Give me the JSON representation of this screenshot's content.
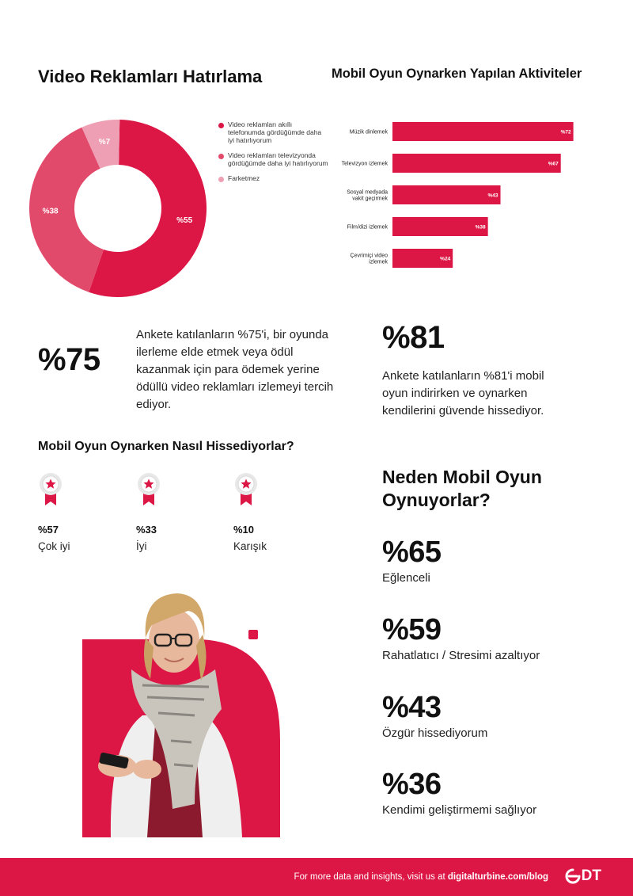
{
  "colors": {
    "primary": "#dc1645",
    "secondary": "#e24a6c",
    "tertiary": "#ef9fb3",
    "footer_bg": "#dc1645"
  },
  "chart_data": [
    {
      "type": "pie",
      "title": "Video Reklamları Hatırlama",
      "donut": true,
      "series": [
        {
          "name": "Video reklamları akıllı telefonumda gördüğümde daha iyi hatırlıyorum",
          "value": 55,
          "label": "%55",
          "color": "#dc1645"
        },
        {
          "name": "Video reklamları televizyonda gördüğümde daha iyi hatırlıyorum",
          "value": 38,
          "label": "%38",
          "color": "#e24a6c"
        },
        {
          "name": "Farketmez",
          "value": 7,
          "label": "%7",
          "color": "#ef9fb3"
        }
      ],
      "legend": "right"
    },
    {
      "type": "bar",
      "orientation": "horizontal",
      "title": "Mobil Oyun Oynarken Yapılan Aktiviteler",
      "categories": [
        [
          "Müzik dinlemek"
        ],
        [
          "Televizyon izlemek"
        ],
        [
          "Sosyal medyada",
          "vakit geçirmek"
        ],
        [
          "Film/dizi izlemek"
        ],
        [
          "Çevrimiçi video",
          "izlemek"
        ]
      ],
      "values": [
        72,
        67,
        43,
        38,
        24
      ],
      "value_labels": [
        "%72",
        "%67",
        "%43",
        "%38",
        "%24"
      ],
      "xlim": [
        0,
        80
      ],
      "color": "#dc1645",
      "grid": false
    }
  ],
  "stats": {
    "s75": {
      "value": "%75",
      "text": "Ankete katılanların %75'i, bir oyunda ilerleme elde etmek veya ödül kazanmak için para ödemek yerine ödüllü video reklamları izlemeyi tercih ediyor."
    },
    "s81": {
      "value": "%81",
      "text": "Ankete katılanların %81'i mobil oyun indirirken ve oynarken kendilerini güvende hissediyor."
    }
  },
  "feelings": {
    "title": "Mobil Oyun Oynarken Nasıl Hissediyorlar?",
    "items": [
      {
        "pct": "%57",
        "label": "Çok iyi"
      },
      {
        "pct": "%33",
        "label": "İyi"
      },
      {
        "pct": "%10",
        "label": "Karışık"
      }
    ]
  },
  "why": {
    "title": "Neden Mobil Oyun Oynuyorlar?",
    "items": [
      {
        "pct": "%65",
        "label": "Eğlenceli"
      },
      {
        "pct": "%59",
        "label": "Rahatlatıcı / Stresimi azaltıyor"
      },
      {
        "pct": "%43",
        "label": "Özgür hissediyorum"
      },
      {
        "pct": "%36",
        "label": "Kendimi geliştirmemi sağlıyor"
      }
    ]
  },
  "footer": {
    "text_prefix": "For more data and insights, visit us at ",
    "link": "digitalturbine.com/blog",
    "logo_text": "DT"
  }
}
